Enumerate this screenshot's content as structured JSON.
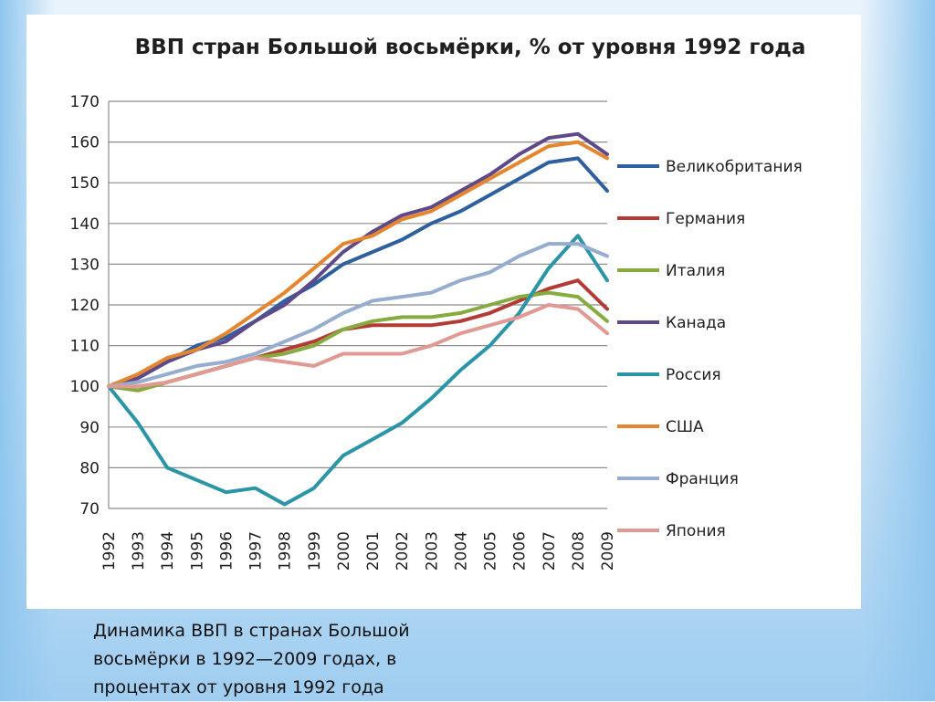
{
  "caption": {
    "line1": "Динамика ВВП в странах Большой",
    "line2": "восьмёрки в 1992—2009 годах, в",
    "line3": "процентах от уровня 1992 года"
  },
  "chart_data": {
    "type": "line",
    "title": "ВВП стран Большой восьмёрки, % от уровня 1992 года",
    "xlabel": "",
    "ylabel": "",
    "ylim": [
      70,
      170
    ],
    "yticks": [
      70,
      80,
      90,
      100,
      110,
      120,
      130,
      140,
      150,
      160,
      170
    ],
    "grid": true,
    "legend_position": "right",
    "categories": [
      "1992",
      "1993",
      "1994",
      "1995",
      "1996",
      "1997",
      "1998",
      "1999",
      "2000",
      "2001",
      "2002",
      "2003",
      "2004",
      "2005",
      "2006",
      "2007",
      "2008",
      "2009"
    ],
    "series": [
      {
        "name": "Великобритания",
        "color": "#2e5f9e",
        "values": [
          100,
          102,
          106,
          110,
          112,
          116,
          121,
          125,
          130,
          133,
          136,
          140,
          143,
          147,
          151,
          155,
          156,
          148
        ]
      },
      {
        "name": "Германия",
        "color": "#b33a35",
        "values": [
          100,
          99,
          101,
          103,
          105,
          107,
          109,
          111,
          114,
          115,
          115,
          115,
          116,
          118,
          121,
          124,
          126,
          119
        ]
      },
      {
        "name": "Италия",
        "color": "#86ab3f",
        "values": [
          100,
          99,
          101,
          103,
          105,
          107,
          108,
          110,
          114,
          116,
          117,
          117,
          118,
          120,
          122,
          123,
          122,
          116
        ]
      },
      {
        "name": "Канада",
        "color": "#5e4a8a",
        "values": [
          100,
          102,
          106,
          109,
          111,
          116,
          120,
          126,
          133,
          138,
          142,
          144,
          148,
          152,
          157,
          161,
          162,
          157
        ]
      },
      {
        "name": "Россия",
        "color": "#2a95a6",
        "values": [
          100,
          91,
          80,
          77,
          74,
          75,
          71,
          75,
          83,
          87,
          91,
          97,
          104,
          110,
          118,
          129,
          137,
          126
        ]
      },
      {
        "name": "США",
        "color": "#e5862e",
        "values": [
          100,
          103,
          107,
          109,
          113,
          118,
          123,
          129,
          135,
          137,
          141,
          143,
          147,
          151,
          155,
          159,
          160,
          156
        ]
      },
      {
        "name": "Франция",
        "color": "#96adcf",
        "values": [
          100,
          101,
          103,
          105,
          106,
          108,
          111,
          114,
          118,
          121,
          122,
          123,
          126,
          128,
          132,
          135,
          135,
          132
        ]
      },
      {
        "name": "Япония",
        "color": "#e29993",
        "values": [
          100,
          100,
          101,
          103,
          105,
          107,
          106,
          105,
          108,
          108,
          108,
          110,
          113,
          115,
          117,
          120,
          119,
          113
        ]
      }
    ]
  }
}
